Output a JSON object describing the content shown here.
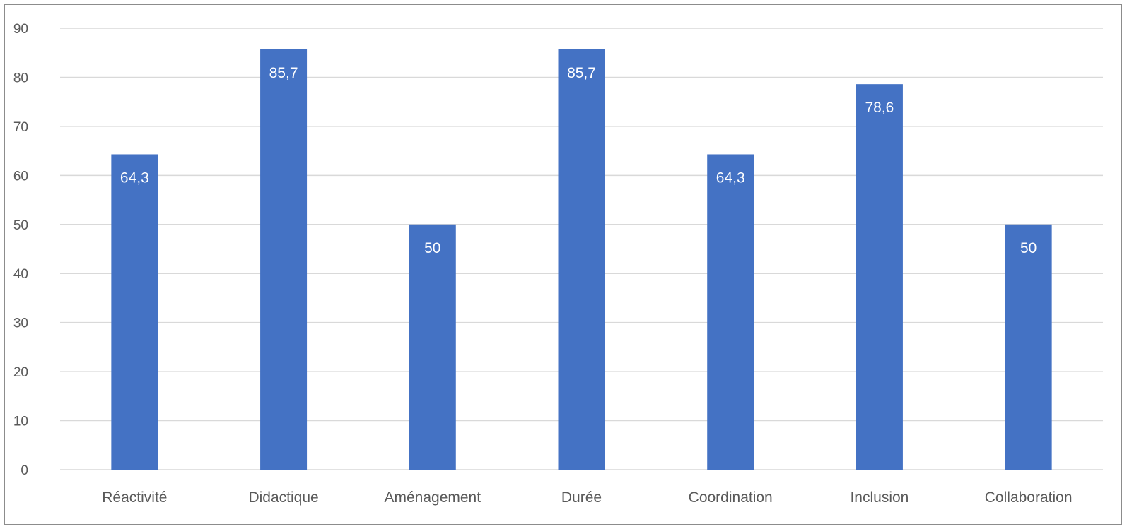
{
  "chart_data": {
    "type": "bar",
    "title": "",
    "xlabel": "",
    "ylabel": "",
    "categories": [
      "Réactivité",
      "Didactique",
      "Aménagement",
      "Durée",
      "Coordination",
      "Inclusion",
      "Collaboration"
    ],
    "values": [
      64.3,
      85.7,
      50,
      85.7,
      64.3,
      78.6,
      50
    ],
    "data_labels": [
      "64,3",
      "85,7",
      "50",
      "85,7",
      "64,3",
      "78,6",
      "50"
    ],
    "yticks": [
      "0",
      "10",
      "20",
      "30",
      "40",
      "50",
      "60",
      "70",
      "80",
      "90"
    ],
    "ylim": [
      0,
      90
    ],
    "grid": true,
    "legend": "none",
    "colors": {
      "bar": "#4472c4",
      "grid": "#d9d9d9",
      "text": "#595959",
      "data_label": "#ffffff"
    }
  }
}
